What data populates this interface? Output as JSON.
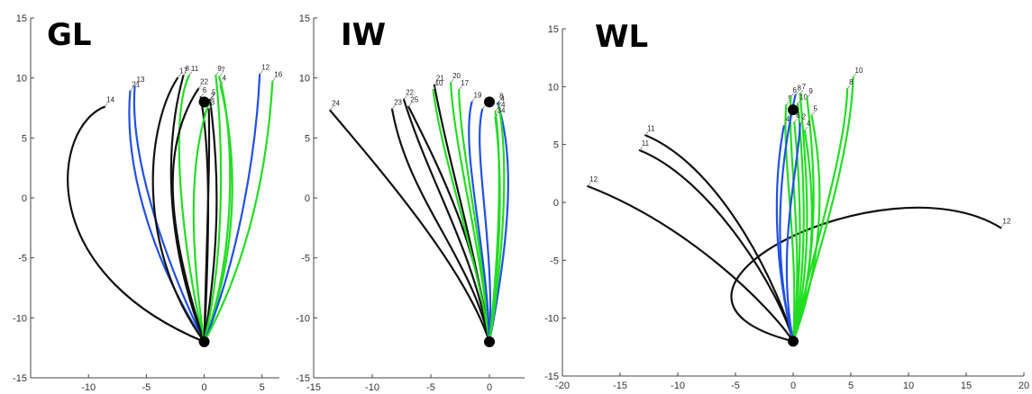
{
  "chart_data": [
    {
      "type": "line",
      "title": "GL",
      "xlim": [
        -15,
        6.5
      ],
      "ylim": [
        -15,
        15
      ],
      "xticks": [
        -10,
        -5,
        0,
        5
      ],
      "yticks": [
        -15,
        -10,
        -5,
        0,
        5,
        10,
        15
      ],
      "origin": [
        0,
        -12
      ],
      "target": [
        0,
        8
      ],
      "colors": {
        "blue": "#2150e6",
        "green": "#22dd22",
        "black": "#111111"
      },
      "trajectories": [
        {
          "label": "14",
          "color": "black",
          "end": [
            -8.6,
            7.6
          ],
          "ctrl1": [
            -15,
            -6
          ],
          "ctrl2": [
            -13,
            6
          ]
        },
        {
          "label": "21",
          "color": "blue",
          "end": [
            -6.4,
            8.9
          ],
          "ctrl1": [
            -4,
            -6
          ],
          "ctrl2": [
            -7,
            2
          ]
        },
        {
          "label": "13",
          "color": "blue",
          "end": [
            -6.0,
            9.3
          ],
          "ctrl1": [
            -3,
            -6
          ],
          "ctrl2": [
            -6.5,
            3
          ]
        },
        {
          "label": "17",
          "color": "black",
          "end": [
            -2.3,
            10.0
          ],
          "ctrl1": [
            -6,
            -4
          ],
          "ctrl2": [
            -5,
            6
          ]
        },
        {
          "label": "8",
          "color": "black",
          "end": [
            -1.8,
            10.2
          ],
          "ctrl1": [
            -4,
            -2
          ],
          "ctrl2": [
            -3,
            6
          ]
        },
        {
          "label": "11",
          "color": "green",
          "end": [
            -1.3,
            10.2
          ],
          "ctrl1": [
            -2,
            -4
          ],
          "ctrl2": [
            -3,
            7
          ]
        },
        {
          "label": "22",
          "color": "black",
          "end": [
            -0.5,
            9.1
          ],
          "ctrl1": [
            -3,
            -3
          ],
          "ctrl2": [
            -4,
            4
          ]
        },
        {
          "label": "6",
          "color": "black",
          "end": [
            -0.3,
            8.4
          ],
          "ctrl1": [
            0.5,
            -2
          ],
          "ctrl2": [
            0.5,
            4
          ]
        },
        {
          "label": "5",
          "color": "black",
          "end": [
            0.5,
            8.2
          ],
          "ctrl1": [
            1.5,
            -3
          ],
          "ctrl2": [
            1.2,
            3
          ]
        },
        {
          "label": "2",
          "color": "green",
          "end": [
            0.4,
            7.9
          ],
          "ctrl1": [
            -1.5,
            -2
          ],
          "ctrl2": [
            -1,
            4
          ]
        },
        {
          "label": "3",
          "color": "black",
          "end": [
            0.4,
            7.4
          ],
          "ctrl1": [
            0.3,
            -1
          ],
          "ctrl2": [
            0.5,
            3
          ]
        },
        {
          "label": "9",
          "color": "green",
          "end": [
            1.0,
            10.2
          ],
          "ctrl1": [
            2,
            -4
          ],
          "ctrl2": [
            1.5,
            6
          ]
        },
        {
          "label": "7",
          "color": "green",
          "end": [
            1.3,
            10.1
          ],
          "ctrl1": [
            3,
            -4
          ],
          "ctrl2": [
            2.5,
            6
          ]
        },
        {
          "label": "4",
          "color": "green",
          "end": [
            1.4,
            9.4
          ],
          "ctrl1": [
            3.5,
            -3
          ],
          "ctrl2": [
            2.5,
            5
          ]
        },
        {
          "label": "12",
          "color": "blue",
          "end": [
            4.8,
            10.3
          ],
          "ctrl1": [
            3,
            -5
          ],
          "ctrl2": [
            4.5,
            4
          ]
        },
        {
          "label": "16",
          "color": "green",
          "end": [
            5.9,
            9.7
          ],
          "ctrl1": [
            4,
            -5
          ],
          "ctrl2": [
            5.5,
            3
          ]
        }
      ]
    },
    {
      "type": "line",
      "title": "IW",
      "xlim": [
        -15,
        3
      ],
      "ylim": [
        -15,
        15
      ],
      "xticks": [
        -15,
        -10,
        -5,
        0
      ],
      "yticks": [
        -15,
        -10,
        -5,
        0,
        5,
        10,
        15
      ],
      "origin": [
        0,
        -12
      ],
      "target": [
        0,
        8
      ],
      "colors": {
        "blue": "#2150e6",
        "green": "#22dd22",
        "black": "#111111"
      },
      "trajectories": [
        {
          "label": "24",
          "color": "black",
          "end": [
            -13.6,
            7.3
          ],
          "ctrl1": [
            -2,
            -6
          ],
          "ctrl2": [
            -9,
            2
          ]
        },
        {
          "label": "23",
          "color": "black",
          "end": [
            -8.3,
            7.4
          ],
          "ctrl1": [
            -1.5,
            -5
          ],
          "ctrl2": [
            -7,
            0
          ]
        },
        {
          "label": "22",
          "color": "black",
          "end": [
            -7.3,
            8.2
          ],
          "ctrl1": [
            -1.5,
            -4
          ],
          "ctrl2": [
            -5,
            1
          ]
        },
        {
          "label": "25",
          "color": "black",
          "end": [
            -6.9,
            7.6
          ],
          "ctrl1": [
            -1,
            -4
          ],
          "ctrl2": [
            -4,
            2
          ]
        },
        {
          "label": "21",
          "color": "black",
          "end": [
            -4.7,
            9.4
          ],
          "ctrl1": [
            -1,
            -5
          ],
          "ctrl2": [
            -3.5,
            3
          ]
        },
        {
          "label": "20",
          "color": "green",
          "end": [
            -3.3,
            9.6
          ],
          "ctrl1": [
            -0.5,
            -5
          ],
          "ctrl2": [
            -3,
            4
          ]
        },
        {
          "label": "10",
          "color": "green",
          "end": [
            -4.8,
            9.0
          ],
          "ctrl1": [
            -1,
            -5
          ],
          "ctrl2": [
            -4,
            3
          ]
        },
        {
          "label": "17",
          "color": "green",
          "end": [
            -2.6,
            9.0
          ],
          "ctrl1": [
            -0.5,
            -4
          ],
          "ctrl2": [
            -2.5,
            4
          ]
        },
        {
          "label": "19",
          "color": "blue",
          "end": [
            -1.5,
            8.0
          ],
          "ctrl1": [
            -0.2,
            -4
          ],
          "ctrl2": [
            -2.5,
            4
          ]
        },
        {
          "label": "1",
          "color": "blue",
          "end": [
            -0.6,
            7.4
          ],
          "ctrl1": [
            0.5,
            -4
          ],
          "ctrl2": [
            -1.5,
            4
          ]
        },
        {
          "label": "14",
          "color": "green",
          "end": [
            0.5,
            7.2
          ],
          "ctrl1": [
            1,
            -3
          ],
          "ctrl2": [
            1,
            4
          ]
        },
        {
          "label": "8",
          "color": "blue",
          "end": [
            0.7,
            7.9
          ],
          "ctrl1": [
            2,
            -2
          ],
          "ctrl2": [
            2,
            4
          ]
        },
        {
          "label": "4",
          "color": "green",
          "end": [
            0.8,
            7.7
          ],
          "ctrl1": [
            1.5,
            -3
          ],
          "ctrl2": [
            1.5,
            4
          ]
        },
        {
          "label": "34",
          "color": "green",
          "end": [
            0.5,
            6.7
          ],
          "ctrl1": [
            1.2,
            -3
          ],
          "ctrl2": [
            1,
            3
          ]
        }
      ]
    },
    {
      "type": "line",
      "title": "WL",
      "xlim": [
        -20,
        20
      ],
      "ylim": [
        -15,
        15
      ],
      "xticks": [
        -20,
        -15,
        -10,
        -5,
        0,
        5,
        10,
        15,
        20
      ],
      "yticks": [
        -15,
        -10,
        -5,
        0,
        5,
        10,
        15
      ],
      "origin": [
        0,
        -12
      ],
      "target": [
        0,
        8
      ],
      "colors": {
        "blue": "#2150e6",
        "green": "#22dd22",
        "black": "#111111"
      },
      "trajectories": [
        {
          "label": "11",
          "color": "black",
          "end": [
            -12.8,
            5.8
          ],
          "ctrl1": [
            -1,
            -8
          ],
          "ctrl2": [
            -6,
            3
          ]
        },
        {
          "label": "11",
          "color": "black",
          "end": [
            -13.3,
            4.5
          ],
          "ctrl1": [
            -1,
            -8
          ],
          "ctrl2": [
            -7,
            2
          ]
        },
        {
          "label": "12",
          "color": "black",
          "end": [
            -17.8,
            1.4
          ],
          "ctrl1": [
            -2,
            -9
          ],
          "ctrl2": [
            -9,
            -2
          ]
        },
        {
          "label": "12",
          "color": "black",
          "end": [
            18.0,
            -2.2
          ],
          "ctrl1": [
            -16,
            -8
          ],
          "ctrl2": [
            8,
            4
          ]
        },
        {
          "label": "9",
          "color": "green",
          "end": [
            -0.6,
            8.4
          ],
          "ctrl1": [
            0.5,
            -4
          ],
          "ctrl2": [
            -1,
            4
          ]
        },
        {
          "label": "6",
          "color": "green",
          "end": [
            -0.2,
            9.1
          ],
          "ctrl1": [
            1,
            -4
          ],
          "ctrl2": [
            -0.5,
            4
          ]
        },
        {
          "label": "8",
          "color": "blue",
          "end": [
            0.2,
            9.3
          ],
          "ctrl1": [
            -2,
            -4
          ],
          "ctrl2": [
            -1,
            4
          ]
        },
        {
          "label": "7",
          "color": "green",
          "end": [
            0.6,
            9.4
          ],
          "ctrl1": [
            2,
            -4
          ],
          "ctrl2": [
            1,
            4
          ]
        },
        {
          "label": "10",
          "color": "green",
          "end": [
            0.4,
            8.5
          ],
          "ctrl1": [
            1.5,
            -4
          ],
          "ctrl2": [
            0.8,
            4
          ]
        },
        {
          "label": "9",
          "color": "green",
          "end": [
            1.2,
            9.0
          ],
          "ctrl1": [
            2.5,
            -4
          ],
          "ctrl2": [
            1.8,
            4
          ]
        },
        {
          "label": "5",
          "color": "green",
          "end": [
            1.6,
            7.5
          ],
          "ctrl1": [
            3,
            -4
          ],
          "ctrl2": [
            2.5,
            3
          ]
        },
        {
          "label": "4",
          "color": "blue",
          "end": [
            -0.8,
            6.6
          ],
          "ctrl1": [
            -2,
            -4
          ],
          "ctrl2": [
            -1.5,
            3
          ]
        },
        {
          "label": "6",
          "color": "green",
          "end": [
            0.1,
            6.9
          ],
          "ctrl1": [
            1,
            -4
          ],
          "ctrl2": [
            0.5,
            3
          ]
        },
        {
          "label": "2",
          "color": "blue",
          "end": [
            0.6,
            6.8
          ],
          "ctrl1": [
            -1.5,
            -4
          ],
          "ctrl2": [
            0.5,
            3
          ]
        },
        {
          "label": "4",
          "color": "green",
          "end": [
            1.0,
            6.2
          ],
          "ctrl1": [
            2.5,
            -4
          ],
          "ctrl2": [
            1.5,
            3
          ]
        },
        {
          "label": "10",
          "color": "green",
          "end": [
            5.2,
            10.8
          ],
          "ctrl1": [
            2,
            -5
          ],
          "ctrl2": [
            5,
            4
          ]
        },
        {
          "label": "8",
          "color": "green",
          "end": [
            4.7,
            9.8
          ],
          "ctrl1": [
            1.5,
            -5
          ],
          "ctrl2": [
            4.5,
            4
          ]
        }
      ]
    }
  ]
}
